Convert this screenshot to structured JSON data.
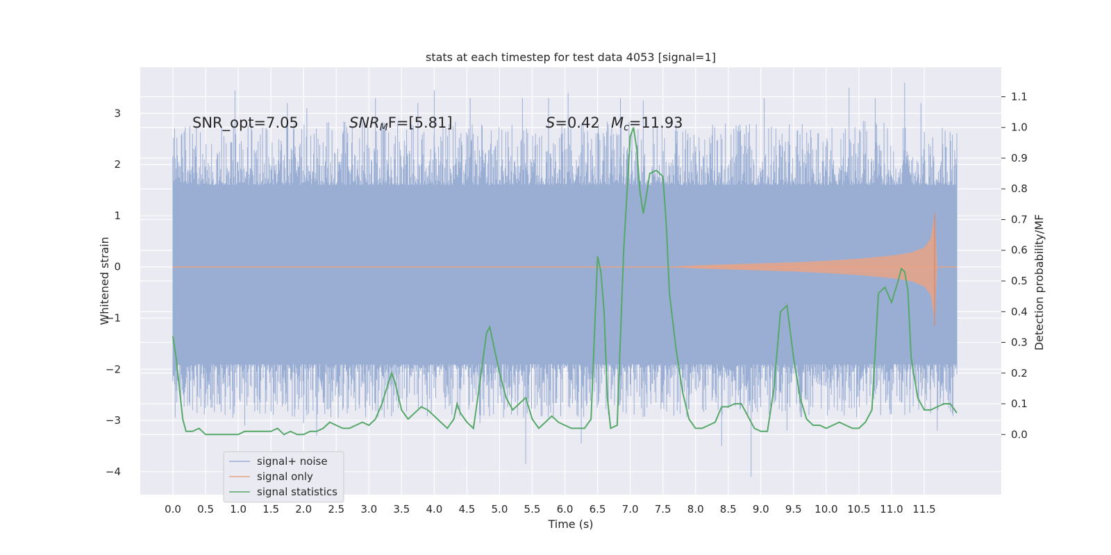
{
  "chart_data": {
    "type": "line",
    "title": "stats at each timestep for test data 4053 [signal=1]",
    "xlabel": "Time (s)",
    "ylabel": "Whitened strain",
    "y2label": "Detection probability/MF",
    "xlim": [
      -0.5,
      12.68
    ],
    "ylim": [
      -4.45,
      3.9
    ],
    "y2lim": [
      -0.196,
      1.196
    ],
    "grid": true,
    "legend_position": "lower-left",
    "x_ticks": [
      "0.0",
      "0.5",
      "1.0",
      "1.5",
      "2.0",
      "2.5",
      "3.0",
      "3.5",
      "4.0",
      "4.5",
      "5.0",
      "5.5",
      "6.0",
      "6.5",
      "7.0",
      "7.5",
      "8.0",
      "8.5",
      "9.0",
      "9.5",
      "10.0",
      "10.5",
      "11.0",
      "11.5"
    ],
    "y_ticks": [
      "3",
      "2",
      "1",
      "0",
      "−1",
      "−2",
      "−3",
      "−4"
    ],
    "y2_ticks": [
      "1.1",
      "1.0",
      "0.9",
      "0.8",
      "0.7",
      "0.6",
      "0.5",
      "0.4",
      "0.3",
      "0.2",
      "0.1",
      "0.0"
    ],
    "annotations": {
      "snr_opt": "SNR_opt=7.05",
      "snr_mf_base": "SNR",
      "snr_mf_sub": "M",
      "snr_mf_rest": "F=[5.81]",
      "s_sym": "S",
      "s_val": "=0.42",
      "mc_base": "M",
      "mc_sub": "c",
      "mc_val": "=11.93"
    },
    "series": [
      {
        "name": "signal+ noise",
        "axis": "left",
        "color": "#9aaed4",
        "description_range": [
          -1.9,
          1.6
        ],
        "x_range": [
          0.0,
          12.0
        ],
        "spikes": [
          [
            0.95,
            3.45
          ],
          [
            1.1,
            -3.1
          ],
          [
            1.75,
            3.2
          ],
          [
            2.0,
            -3.05
          ],
          [
            2.05,
            3.1
          ],
          [
            2.2,
            -3.3
          ],
          [
            3.1,
            3.3
          ],
          [
            3.75,
            3.2
          ],
          [
            4.0,
            3.45
          ],
          [
            4.55,
            3.3
          ],
          [
            4.7,
            -3.05
          ],
          [
            5.35,
            3.3
          ],
          [
            5.4,
            -3.85
          ],
          [
            5.75,
            3.3
          ],
          [
            6.05,
            3.4
          ],
          [
            6.25,
            -3.45
          ],
          [
            6.85,
            3.3
          ],
          [
            7.2,
            3.25
          ],
          [
            8.4,
            -3.5
          ],
          [
            8.85,
            -4.1
          ],
          [
            9.05,
            3.3
          ],
          [
            9.4,
            -3.2
          ],
          [
            10.35,
            3.5
          ],
          [
            10.75,
            3.3
          ],
          [
            11.2,
            3.6
          ],
          [
            11.45,
            3.2
          ],
          [
            11.7,
            -3.2
          ]
        ]
      },
      {
        "name": "signal only",
        "axis": "left",
        "color": "#e8a386",
        "x": [
          0.0,
          7.5,
          8.0,
          8.5,
          9.0,
          9.5,
          10.0,
          10.5,
          11.0,
          11.3,
          11.5,
          11.6,
          11.66,
          11.7,
          12.0
        ],
        "envelope": [
          0.0,
          0.0,
          0.03,
          0.05,
          0.07,
          0.09,
          0.12,
          0.16,
          0.22,
          0.28,
          0.38,
          0.55,
          1.05,
          0.0,
          0.0
        ]
      },
      {
        "name": "signal statistics",
        "axis": "right",
        "color": "#55a868",
        "x": [
          0,
          0.05,
          0.1,
          0.15,
          0.2,
          0.25,
          0.3,
          0.4,
          0.5,
          0.6,
          0.7,
          0.8,
          0.9,
          1.0,
          1.1,
          1.2,
          1.3,
          1.4,
          1.5,
          1.6,
          1.7,
          1.8,
          1.9,
          2.0,
          2.1,
          2.2,
          2.3,
          2.4,
          2.5,
          2.6,
          2.7,
          2.8,
          2.9,
          3.0,
          3.1,
          3.2,
          3.3,
          3.35,
          3.4,
          3.5,
          3.6,
          3.7,
          3.8,
          3.9,
          4.0,
          4.1,
          4.2,
          4.3,
          4.35,
          4.4,
          4.5,
          4.6,
          4.7,
          4.8,
          4.85,
          4.9,
          5.0,
          5.1,
          5.2,
          5.3,
          5.4,
          5.5,
          5.6,
          5.7,
          5.8,
          5.9,
          6.0,
          6.1,
          6.2,
          6.3,
          6.4,
          6.5,
          6.55,
          6.6,
          6.65,
          6.7,
          6.8,
          6.9,
          7.0,
          7.05,
          7.1,
          7.15,
          7.2,
          7.25,
          7.3,
          7.4,
          7.5,
          7.55,
          7.6,
          7.7,
          7.8,
          7.9,
          8.0,
          8.1,
          8.2,
          8.3,
          8.4,
          8.5,
          8.6,
          8.7,
          8.8,
          8.9,
          9.0,
          9.1,
          9.2,
          9.3,
          9.4,
          9.5,
          9.6,
          9.7,
          9.8,
          9.9,
          10.0,
          10.1,
          10.2,
          10.3,
          10.4,
          10.5,
          10.6,
          10.7,
          10.8,
          10.9,
          11.0,
          11.1,
          11.15,
          11.2,
          11.25,
          11.3,
          11.4,
          11.5,
          11.6,
          11.7,
          11.8,
          11.9,
          12.0
        ],
        "values": [
          0.32,
          0.25,
          0.15,
          0.05,
          0.01,
          0.01,
          0.01,
          0.02,
          0.0,
          0.0,
          0.0,
          0.0,
          0.0,
          0.0,
          0.01,
          0.01,
          0.01,
          0.01,
          0.01,
          0.02,
          0.0,
          0.01,
          0.0,
          0.0,
          0.01,
          0.01,
          0.02,
          0.04,
          0.03,
          0.02,
          0.02,
          0.03,
          0.04,
          0.03,
          0.05,
          0.1,
          0.17,
          0.2,
          0.17,
          0.08,
          0.05,
          0.07,
          0.09,
          0.08,
          0.06,
          0.04,
          0.02,
          0.05,
          0.1,
          0.07,
          0.04,
          0.02,
          0.17,
          0.33,
          0.35,
          0.3,
          0.2,
          0.12,
          0.08,
          0.1,
          0.12,
          0.05,
          0.02,
          0.04,
          0.06,
          0.04,
          0.03,
          0.02,
          0.02,
          0.02,
          0.05,
          0.58,
          0.53,
          0.4,
          0.12,
          0.02,
          0.03,
          0.6,
          0.97,
          1.0,
          0.93,
          0.79,
          0.72,
          0.78,
          0.85,
          0.86,
          0.84,
          0.69,
          0.46,
          0.28,
          0.14,
          0.05,
          0.02,
          0.02,
          0.03,
          0.04,
          0.09,
          0.09,
          0.1,
          0.1,
          0.06,
          0.02,
          0.01,
          0.01,
          0.15,
          0.4,
          0.42,
          0.25,
          0.12,
          0.05,
          0.03,
          0.03,
          0.02,
          0.03,
          0.04,
          0.03,
          0.02,
          0.02,
          0.04,
          0.08,
          0.46,
          0.48,
          0.43,
          0.5,
          0.54,
          0.53,
          0.47,
          0.25,
          0.12,
          0.08,
          0.08,
          0.09,
          0.1,
          0.1,
          0.07
        ]
      }
    ]
  }
}
